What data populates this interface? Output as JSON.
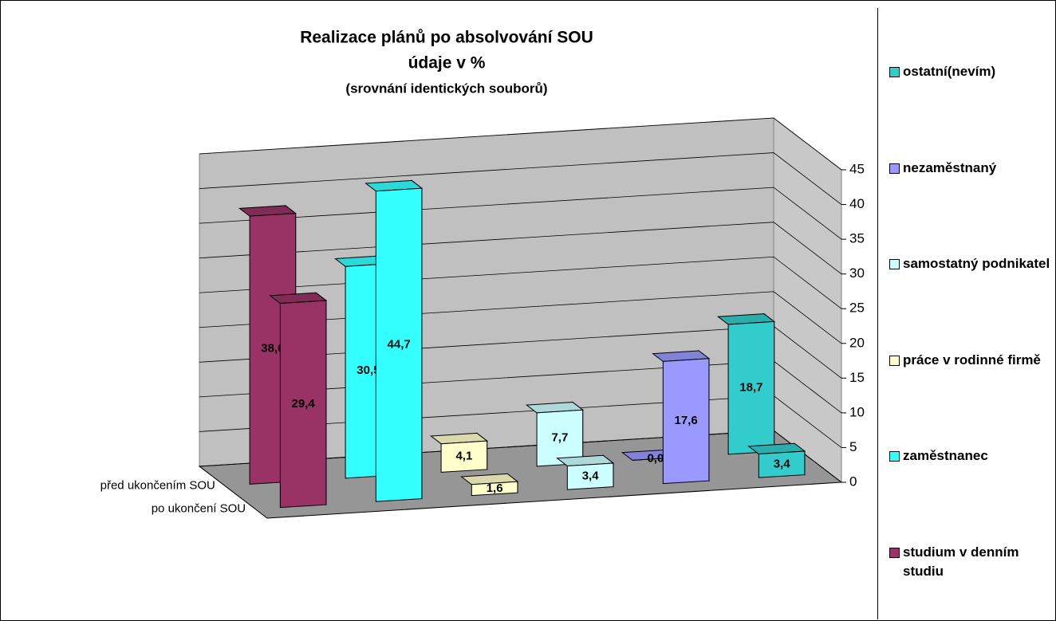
{
  "chart_data": {
    "type": "bar3d",
    "title": [
      "Realizace plánů po absolvování SOU",
      "údaje v %"
    ],
    "subtitle": "(srovnání identických souborů)",
    "categories": [
      "před ukončením SOU",
      "po ukončení SOU"
    ],
    "series": [
      {
        "name": "studium v denním studiu",
        "color": "#993366",
        "values": [
          38.6,
          29.4
        ],
        "value_labels": [
          "38,6",
          "29,4"
        ]
      },
      {
        "name": "zaměstnanec",
        "color": "#33FFFF",
        "values": [
          30.5,
          44.7
        ],
        "value_labels": [
          "30,5",
          "44,7"
        ]
      },
      {
        "name": "práce v rodinné firmě",
        "color": "#FFFFCC",
        "values": [
          4.1,
          1.6
        ],
        "value_labels": [
          "4,1",
          "1,6"
        ]
      },
      {
        "name": "samostatný podnikatel",
        "color": "#CCFFFF",
        "values": [
          7.7,
          3.4
        ],
        "value_labels": [
          "7,7",
          "3,4"
        ]
      },
      {
        "name": "nezaměstnaný",
        "color": "#9999FF",
        "values": [
          0,
          17.6
        ],
        "value_labels": [
          "0,0",
          "17,6"
        ]
      },
      {
        "name": "ostatní(nevím)",
        "color": "#33CCCC",
        "values": [
          18.7,
          3.4
        ],
        "value_labels": [
          "18,7",
          "3,4"
        ]
      }
    ],
    "ylim": [
      0,
      45
    ],
    "yticks": [
      0,
      5,
      10,
      15,
      20,
      25,
      30,
      35,
      40,
      45
    ],
    "grid": true,
    "legend": "right"
  }
}
